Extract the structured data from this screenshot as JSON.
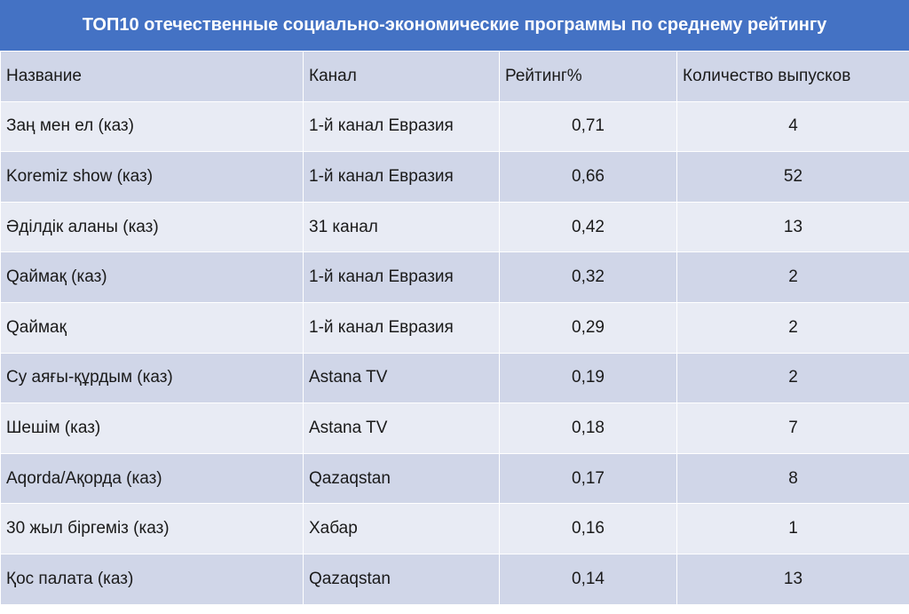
{
  "chart_data": {
    "type": "table",
    "title": "ТОП10 отечественные социально-экономические программы по среднему рейтингу",
    "columns": [
      "Название",
      "Канал",
      "Рейтинг%",
      "Количество выпусков"
    ],
    "rows": [
      [
        "Заң мен ел (каз)",
        "1-й канал Евразия",
        "0,71",
        "4"
      ],
      [
        "Koremiz show (каз)",
        "1-й канал Евразия",
        "0,66",
        "52"
      ],
      [
        "Әділдік аланы (каз)",
        "31 канал",
        "0,42",
        "13"
      ],
      [
        "Qаймақ (каз)",
        "1-й канал Евразия",
        "0,32",
        "2"
      ],
      [
        "Qаймақ",
        "1-й канал Евразия",
        "0,29",
        "2"
      ],
      [
        "Су аяғы-құрдым (каз)",
        "Astana TV",
        "0,19",
        "2"
      ],
      [
        "Шешім (каз)",
        "Astana TV",
        "0,18",
        "7"
      ],
      [
        "Aqorda/Ақорда (каз)",
        "Qazaqstan",
        "0,17",
        "8"
      ],
      [
        "30 жыл біргеміз (каз)",
        "Хабар",
        "0,16",
        "1"
      ],
      [
        "Қос палата (каз)",
        "Qazaqstan",
        "0,14",
        "13"
      ]
    ]
  },
  "colors": {
    "title_bg": "#4472c4",
    "title_text": "#ffffff",
    "row_dark": "#d0d6e8",
    "row_light": "#e8ebf4"
  }
}
